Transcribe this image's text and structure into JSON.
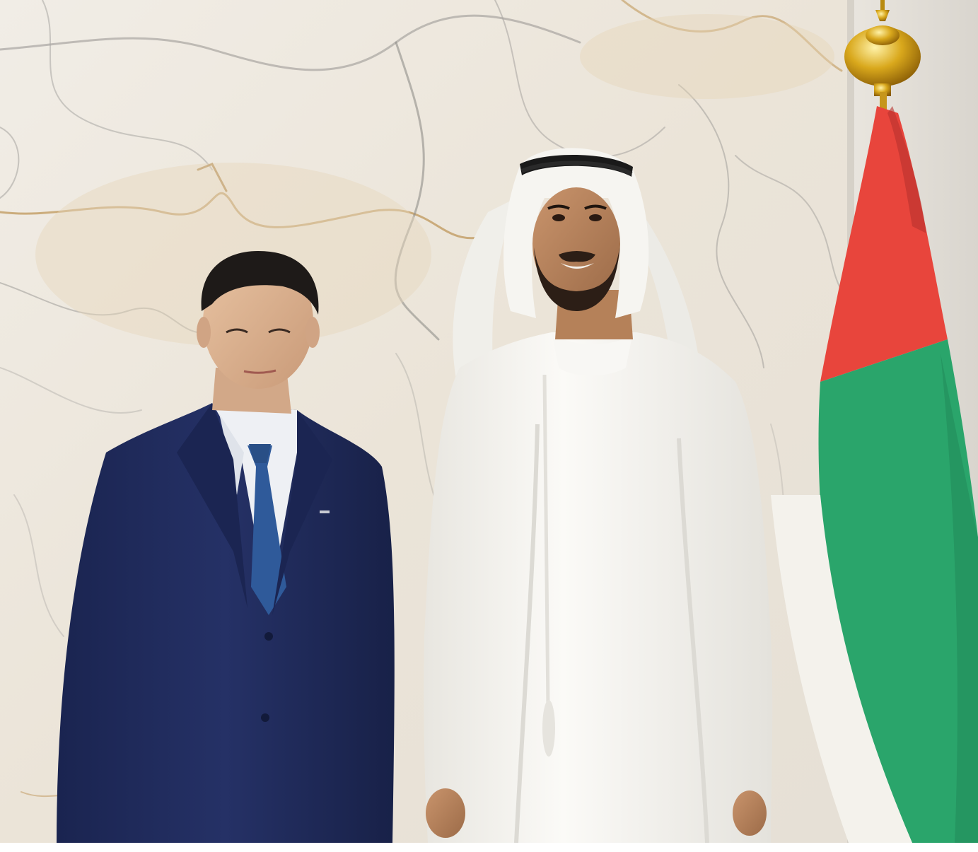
{
  "photo": {
    "subject": "two-men-standing-in-front-of-marble-wall-and-flag",
    "colors": {
      "marble": "#ece6dc",
      "marble_veins": "#8e8c88",
      "gold_veins": "#c9a56b",
      "suit": "#1f2a55",
      "kandura": "#f7f6f2",
      "flag_red": "#e8453c",
      "flag_green": "#2aa56b",
      "flag_white": "#f4f2ec",
      "finial_gold": "#c99a18",
      "tie": "#2f5a9a"
    }
  }
}
